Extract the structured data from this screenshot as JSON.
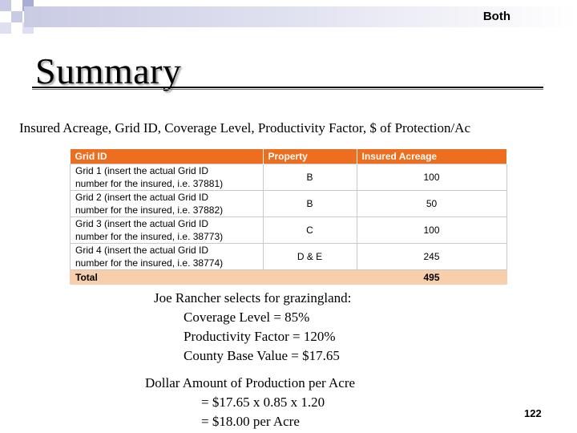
{
  "header": {
    "tag": "Both"
  },
  "title": "Summary",
  "subtitle": "Insured Acreage, Grid ID, Coverage Level, Productivity Factor, $ of Protection/Ac",
  "table": {
    "headers": [
      "Grid ID",
      "Property",
      "Insured Acreage"
    ],
    "rows": [
      {
        "grid_line1": "Grid 1 (insert the actual Grid ID",
        "grid_line2": "number for the insured, i.e. 37881)",
        "property": "B",
        "acreage": "100"
      },
      {
        "grid_line1": "Grid 2 (insert the actual Grid ID",
        "grid_line2": "number for the insured, i.e. 37882)",
        "property": "B",
        "acreage": "50"
      },
      {
        "grid_line1": "Grid 3 (insert the actual Grid ID",
        "grid_line2": "number for the insured, i.e. 38773)",
        "property": "C",
        "acreage": "100"
      },
      {
        "grid_line1": "Grid 4 (insert the actual Grid ID",
        "grid_line2": "number for the insured, i.e. 38774)",
        "property": "D & E",
        "acreage": "245"
      }
    ],
    "total": {
      "label": "Total",
      "acreage": "495"
    }
  },
  "rancher": {
    "intro": "Joe Rancher selects for grazingland:",
    "coverage": "Coverage Level = 85%",
    "productivity": "Productivity Factor = 120%",
    "base_value": "County Base Value = $17.65"
  },
  "calculation": {
    "heading": "Dollar Amount of Production per Acre",
    "line1": "=  $17.65 x 0.85 x 1.20",
    "line2": "= $18.00 per Acre"
  },
  "page_number": "122",
  "colors": {
    "table_header": "#ee6e1f",
    "total_row": "#f7cfaa",
    "top_bar": "#c9cbe4"
  }
}
